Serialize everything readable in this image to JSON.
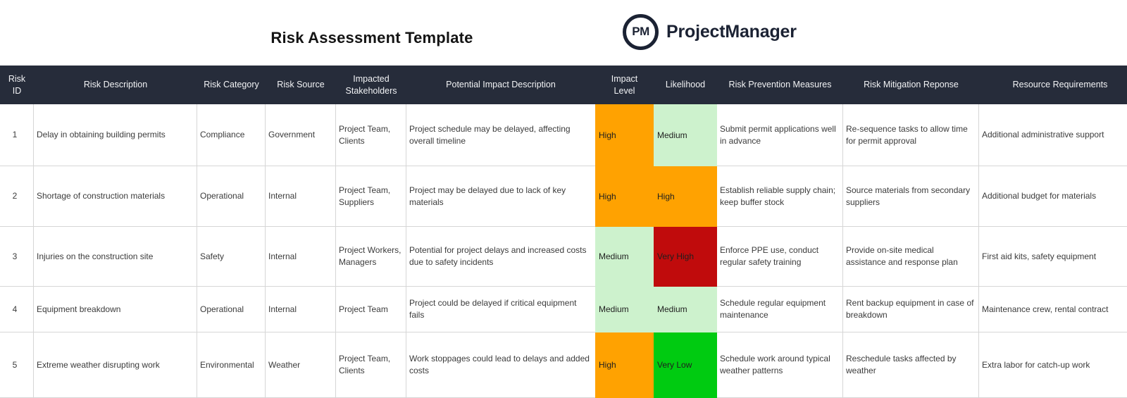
{
  "title": "Risk Assessment Template",
  "logo": {
    "monogram": "PM",
    "wordmark": "ProjectManager"
  },
  "colors": {
    "header_bg": "#262c3a",
    "header_text": "#f2f3f5",
    "brand_navy": "#1b2233",
    "grid_line": "#d6d6d6",
    "body_text": "#3b3b3b",
    "level_orange": "#ffa201",
    "level_light_green": "#cdf2cd",
    "level_dark_red": "#c00b0c",
    "level_bright_green": "#00cb11"
  },
  "table": {
    "columns": [
      {
        "label": "Risk ID"
      },
      {
        "label": "Risk Description"
      },
      {
        "label": "Risk Category"
      },
      {
        "label": "Risk Source"
      },
      {
        "label": "Impacted Stakeholders"
      },
      {
        "label": "Potential Impact Description"
      },
      {
        "label": "Impact Level"
      },
      {
        "label": "Likelihood"
      },
      {
        "label": "Risk Prevention Measures"
      },
      {
        "label": "Risk Mitigation Reponse"
      },
      {
        "label": "Resource Requirements"
      }
    ],
    "level_colors": {
      "High": "#ffa201",
      "Medium": "#cdf2cd",
      "Very High": "#c00b0c",
      "Very Low": "#00cb11"
    },
    "rows": [
      {
        "cells": [
          "1",
          "Delay in obtaining building permits",
          "Compliance",
          "Government",
          "Project Team, Clients",
          "Project schedule may be delayed, affecting overall timeline",
          "High",
          "Medium",
          "Submit permit applications well in advance",
          "Re-sequence tasks to allow time for permit approval",
          "Additional administrative support"
        ]
      },
      {
        "cells": [
          "2",
          "Shortage of construction materials",
          "Operational",
          "Internal",
          "Project Team, Suppliers",
          "Project may be delayed due to lack of key materials",
          "High",
          "High",
          "Establish reliable supply chain; keep buffer stock",
          "Source materials from secondary suppliers",
          "Additional budget for materials"
        ]
      },
      {
        "cells": [
          "3",
          "Injuries on the construction site",
          "Safety",
          "Internal",
          "Project Workers, Managers",
          "Potential for project delays and increased costs due to safety incidents",
          "Medium",
          "Very High",
          "Enforce PPE use, conduct regular safety training",
          "Provide on-site medical assistance and response plan",
          "First aid kits, safety equipment"
        ]
      },
      {
        "cells": [
          "4",
          "Equipment breakdown",
          "Operational",
          "Internal",
          "Project Team",
          "Project could be delayed if critical equipment fails",
          "Medium",
          "Medium",
          "Schedule regular equipment maintenance",
          "Rent backup equipment in case of breakdown",
          "Maintenance crew, rental contract"
        ]
      },
      {
        "cells": [
          "5",
          "Extreme weather disrupting work",
          "Environmental",
          "Weather",
          "Project Team, Clients",
          "Work stoppages could lead to delays and added costs",
          "High",
          "Very Low",
          "Schedule work around typical weather patterns",
          "Reschedule tasks affected by weather",
          "Extra labor for catch-up work"
        ]
      }
    ]
  }
}
